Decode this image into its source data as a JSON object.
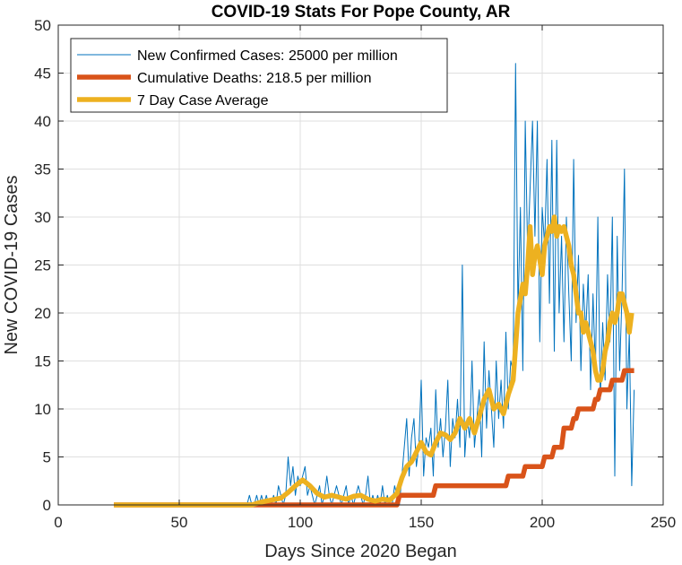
{
  "chart_data": {
    "type": "line",
    "title": "COVID-19 Stats For Pope County, AR",
    "xlabel": "Days Since 2020 Began",
    "ylabel": "New COVID-19 Cases",
    "xlim": [
      0,
      250
    ],
    "ylim": [
      0,
      50
    ],
    "xticks": [
      0,
      50,
      100,
      150,
      200,
      250
    ],
    "yticks": [
      0,
      5,
      10,
      15,
      20,
      25,
      30,
      35,
      40,
      45,
      50
    ],
    "grid": true,
    "legend_position": "top-left",
    "colors": {
      "new_cases": "#0072BD",
      "deaths": "#D95319",
      "avg": "#EDB120",
      "grid": "#dfdfdf",
      "axis": "#262626"
    },
    "series": [
      {
        "name": "New Confirmed Cases: 25000 per million",
        "points": [
          [
            23,
            0
          ],
          [
            78,
            0
          ],
          [
            79,
            1
          ],
          [
            80,
            0
          ],
          [
            81,
            0
          ],
          [
            82,
            1
          ],
          [
            83,
            0
          ],
          [
            84,
            1
          ],
          [
            85,
            0
          ],
          [
            86,
            1
          ],
          [
            87,
            0
          ],
          [
            88,
            0
          ],
          [
            89,
            1
          ],
          [
            90,
            0
          ],
          [
            91,
            2
          ],
          [
            92,
            1
          ],
          [
            93,
            0
          ],
          [
            94,
            1
          ],
          [
            95,
            5
          ],
          [
            96,
            2
          ],
          [
            97,
            4
          ],
          [
            98,
            1
          ],
          [
            99,
            3
          ],
          [
            100,
            2
          ],
          [
            101,
            3
          ],
          [
            102,
            4
          ],
          [
            103,
            1
          ],
          [
            104,
            2
          ],
          [
            105,
            1
          ],
          [
            106,
            0
          ],
          [
            107,
            1
          ],
          [
            108,
            2
          ],
          [
            109,
            0
          ],
          [
            110,
            1
          ],
          [
            111,
            3
          ],
          [
            112,
            1
          ],
          [
            113,
            0
          ],
          [
            114,
            1
          ],
          [
            115,
            2
          ],
          [
            116,
            1
          ],
          [
            117,
            0
          ],
          [
            118,
            1
          ],
          [
            119,
            2
          ],
          [
            120,
            0
          ],
          [
            121,
            1
          ],
          [
            122,
            0
          ],
          [
            123,
            1
          ],
          [
            124,
            2
          ],
          [
            125,
            1
          ],
          [
            126,
            0
          ],
          [
            127,
            1
          ],
          [
            128,
            3
          ],
          [
            129,
            0
          ],
          [
            130,
            1
          ],
          [
            131,
            0
          ],
          [
            132,
            1
          ],
          [
            133,
            0
          ],
          [
            134,
            2
          ],
          [
            135,
            0
          ],
          [
            136,
            1
          ],
          [
            137,
            0
          ],
          [
            138,
            0
          ],
          [
            139,
            2
          ],
          [
            140,
            1
          ],
          [
            141,
            0
          ],
          [
            142,
            3
          ],
          [
            143,
            6
          ],
          [
            144,
            9
          ],
          [
            145,
            3
          ],
          [
            146,
            7
          ],
          [
            147,
            9
          ],
          [
            148,
            4
          ],
          [
            149,
            6
          ],
          [
            150,
            13
          ],
          [
            151,
            3
          ],
          [
            152,
            7
          ],
          [
            153,
            6
          ],
          [
            154,
            8
          ],
          [
            155,
            3
          ],
          [
            156,
            12
          ],
          [
            157,
            6
          ],
          [
            158,
            9
          ],
          [
            159,
            5
          ],
          [
            160,
            8
          ],
          [
            161,
            13
          ],
          [
            162,
            4
          ],
          [
            163,
            9
          ],
          [
            164,
            7
          ],
          [
            165,
            11
          ],
          [
            166,
            6
          ],
          [
            167,
            25
          ],
          [
            168,
            5
          ],
          [
            169,
            9
          ],
          [
            170,
            7
          ],
          [
            171,
            15
          ],
          [
            172,
            6
          ],
          [
            173,
            9
          ],
          [
            174,
            12
          ],
          [
            175,
            5
          ],
          [
            176,
            17
          ],
          [
            177,
            8
          ],
          [
            178,
            14
          ],
          [
            179,
            10
          ],
          [
            180,
            6
          ],
          [
            181,
            15
          ],
          [
            182,
            9
          ],
          [
            183,
            13
          ],
          [
            184,
            8
          ],
          [
            185,
            18
          ],
          [
            186,
            10
          ],
          [
            187,
            15
          ],
          [
            188,
            14
          ],
          [
            189,
            46
          ],
          [
            190,
            20
          ],
          [
            191,
            31
          ],
          [
            192,
            14
          ],
          [
            193,
            40
          ],
          [
            194,
            26
          ],
          [
            195,
            33
          ],
          [
            196,
            40
          ],
          [
            197,
            28
          ],
          [
            198,
            40
          ],
          [
            199,
            17
          ],
          [
            200,
            31
          ],
          [
            201,
            27
          ],
          [
            202,
            36
          ],
          [
            203,
            21
          ],
          [
            204,
            38
          ],
          [
            205,
            16
          ],
          [
            206,
            38
          ],
          [
            207,
            20
          ],
          [
            208,
            28
          ],
          [
            209,
            17
          ],
          [
            210,
            30
          ],
          [
            211,
            22
          ],
          [
            212,
            15
          ],
          [
            213,
            36
          ],
          [
            214,
            19
          ],
          [
            215,
            26
          ],
          [
            216,
            14
          ],
          [
            217,
            23
          ],
          [
            218,
            18
          ],
          [
            219,
            24
          ],
          [
            220,
            12
          ],
          [
            221,
            22
          ],
          [
            222,
            14
          ],
          [
            223,
            30
          ],
          [
            224,
            11
          ],
          [
            225,
            19
          ],
          [
            226,
            13
          ],
          [
            227,
            24
          ],
          [
            228,
            17
          ],
          [
            229,
            30
          ],
          [
            230,
            3
          ],
          [
            231,
            28
          ],
          [
            232,
            14
          ],
          [
            233,
            22
          ],
          [
            234,
            35
          ],
          [
            235,
            10
          ],
          [
            236,
            18
          ],
          [
            237,
            2
          ],
          [
            238,
            12
          ]
        ]
      },
      {
        "name": "Cumulative Deaths: 218.5 per million",
        "points": [
          [
            23,
            0
          ],
          [
            140,
            0
          ],
          [
            141,
            1
          ],
          [
            155,
            1
          ],
          [
            156,
            2
          ],
          [
            185,
            2
          ],
          [
            186,
            3
          ],
          [
            192,
            3
          ],
          [
            193,
            4
          ],
          [
            200,
            4
          ],
          [
            201,
            5
          ],
          [
            204,
            5
          ],
          [
            205,
            6
          ],
          [
            208,
            6
          ],
          [
            209,
            8
          ],
          [
            212,
            8
          ],
          [
            213,
            9
          ],
          [
            214,
            9
          ],
          [
            215,
            10
          ],
          [
            221,
            10
          ],
          [
            222,
            11
          ],
          [
            223,
            11
          ],
          [
            224,
            12
          ],
          [
            228,
            12
          ],
          [
            229,
            13
          ],
          [
            233,
            13
          ],
          [
            234,
            14
          ],
          [
            238,
            14
          ]
        ]
      },
      {
        "name": "7 Day Case Average",
        "points": [
          [
            23,
            0
          ],
          [
            80,
            0
          ],
          [
            84,
            0.3
          ],
          [
            88,
            0.5
          ],
          [
            92,
            0.7
          ],
          [
            95,
            1.3
          ],
          [
            98,
            2
          ],
          [
            101,
            2.6
          ],
          [
            104,
            2
          ],
          [
            107,
            1.2
          ],
          [
            110,
            0.8
          ],
          [
            113,
            1
          ],
          [
            116,
            0.8
          ],
          [
            119,
            0.6
          ],
          [
            122,
            0.9
          ],
          [
            125,
            1
          ],
          [
            128,
            0.6
          ],
          [
            131,
            0.4
          ],
          [
            134,
            0.6
          ],
          [
            137,
            0.5
          ],
          [
            140,
            1.2
          ],
          [
            142,
            2.8
          ],
          [
            144,
            4
          ],
          [
            146,
            4.5
          ],
          [
            148,
            5.5
          ],
          [
            150,
            6.5
          ],
          [
            152,
            5.5
          ],
          [
            154,
            5.2
          ],
          [
            156,
            6.5
          ],
          [
            158,
            7.5
          ],
          [
            160,
            7.3
          ],
          [
            162,
            6.8
          ],
          [
            164,
            7.5
          ],
          [
            166,
            9
          ],
          [
            168,
            8
          ],
          [
            170,
            9
          ],
          [
            172,
            7.5
          ],
          [
            174,
            9.2
          ],
          [
            176,
            11
          ],
          [
            178,
            12
          ],
          [
            180,
            10
          ],
          [
            182,
            10.5
          ],
          [
            184,
            9.5
          ],
          [
            186,
            11.5
          ],
          [
            188,
            13
          ],
          [
            190,
            20
          ],
          [
            192,
            23
          ],
          [
            193,
            22
          ],
          [
            194,
            25
          ],
          [
            195,
            29
          ],
          [
            196,
            24
          ],
          [
            197,
            26
          ],
          [
            198,
            27
          ],
          [
            200,
            24
          ],
          [
            201,
            27
          ],
          [
            202,
            28
          ],
          [
            203,
            29
          ],
          [
            204,
            28.5
          ],
          [
            205,
            30
          ],
          [
            206,
            28
          ],
          [
            207,
            29
          ],
          [
            208,
            28.5
          ],
          [
            209,
            29
          ],
          [
            210,
            28
          ],
          [
            211,
            27
          ],
          [
            212,
            25
          ],
          [
            213,
            24
          ],
          [
            214,
            22
          ],
          [
            215,
            20
          ],
          [
            216,
            20
          ],
          [
            217,
            18
          ],
          [
            218,
            19
          ],
          [
            219,
            18
          ],
          [
            220,
            17
          ],
          [
            221,
            16
          ],
          [
            222,
            14
          ],
          [
            223,
            13
          ],
          [
            224,
            13
          ],
          [
            225,
            14
          ],
          [
            226,
            16
          ],
          [
            227,
            17
          ],
          [
            228,
            19
          ],
          [
            229,
            20
          ],
          [
            230,
            19
          ],
          [
            231,
            20
          ],
          [
            232,
            22
          ],
          [
            233,
            22
          ],
          [
            234,
            21
          ],
          [
            235,
            20
          ],
          [
            236,
            18
          ],
          [
            237,
            20
          ]
        ]
      }
    ]
  }
}
